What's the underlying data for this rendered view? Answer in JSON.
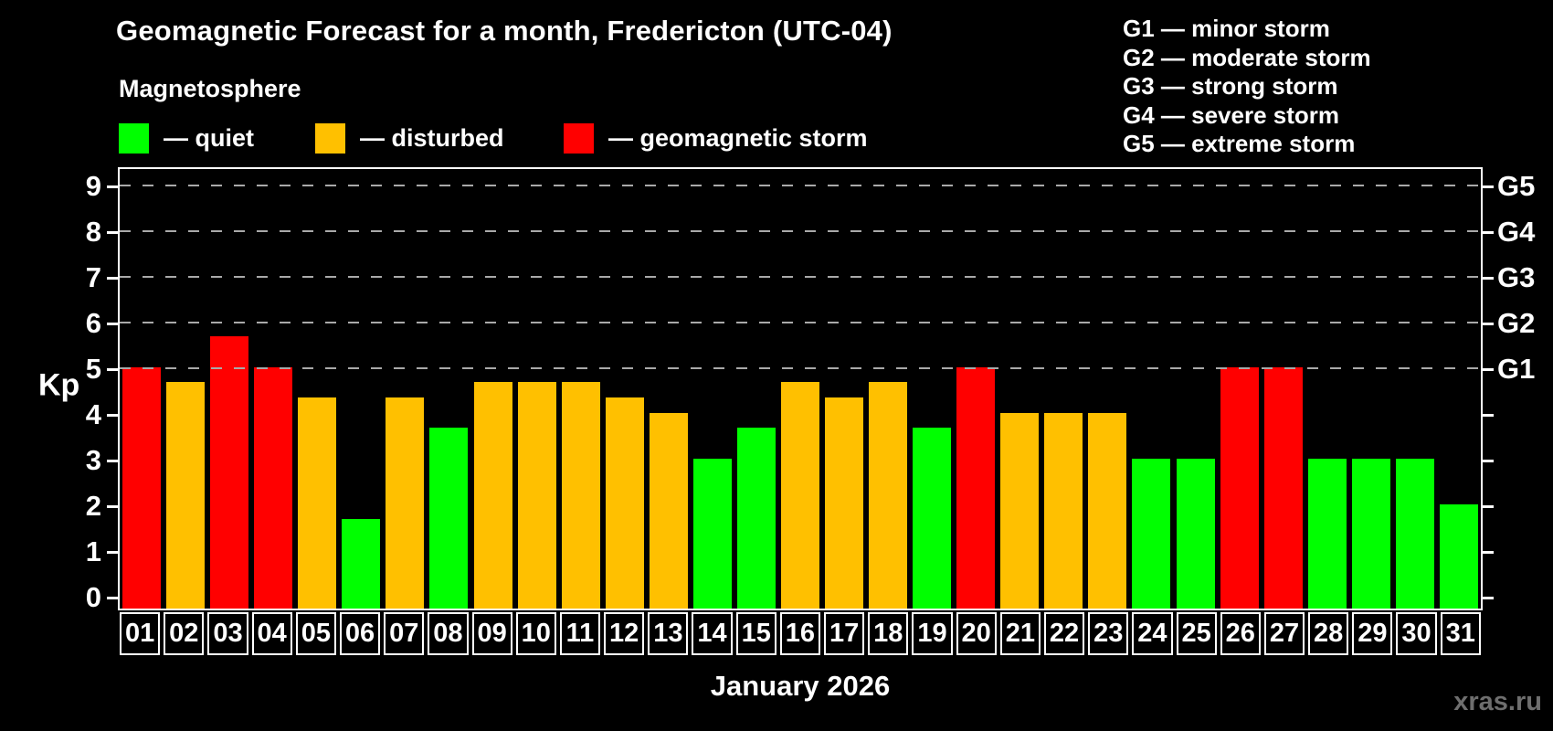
{
  "title": "Geomagnetic Forecast for a month, Fredericton (UTC-04)",
  "subtitle": "Magnetosphere",
  "legend": {
    "items": [
      {
        "name": "quiet",
        "label": "— quiet",
        "color": "#00ff00"
      },
      {
        "name": "disturbed",
        "label": "— disturbed",
        "color": "#ffc000"
      },
      {
        "name": "storm",
        "label": "— geomagnetic storm",
        "color": "#ff0000"
      }
    ]
  },
  "g_legend": [
    "G1 — minor storm",
    "G2 — moderate storm",
    "G3 — strong storm",
    "G4 — severe storm",
    "G5 — extreme storm"
  ],
  "axis": {
    "ylabel": "Kp",
    "xlabel": "January 2026",
    "yticks": [
      0,
      1,
      2,
      3,
      4,
      5,
      6,
      7,
      8,
      9
    ],
    "right_labels": [
      {
        "label": "G1",
        "kp": 5
      },
      {
        "label": "G2",
        "kp": 6
      },
      {
        "label": "G3",
        "kp": 7
      },
      {
        "label": "G4",
        "kp": 8
      },
      {
        "label": "G5",
        "kp": 9
      }
    ]
  },
  "watermark": "xras.ru",
  "chart_data": {
    "type": "bar",
    "title": "Geomagnetic Forecast for a month, Fredericton (UTC-04)",
    "xlabel": "January 2026",
    "ylabel": "Kp",
    "ylim": [
      0,
      9.4
    ],
    "grid": "dashed horizontal lines at Kp 5–9 (G1–G5)",
    "legend_position": "top-left",
    "categories": [
      "01",
      "02",
      "03",
      "04",
      "05",
      "06",
      "07",
      "08",
      "09",
      "10",
      "11",
      "12",
      "13",
      "14",
      "15",
      "16",
      "17",
      "18",
      "19",
      "20",
      "21",
      "22",
      "23",
      "24",
      "25",
      "26",
      "27",
      "28",
      "29",
      "30",
      "31"
    ],
    "values": [
      5.0,
      4.67,
      5.67,
      5.0,
      4.33,
      1.67,
      4.33,
      3.67,
      4.67,
      4.67,
      4.67,
      4.33,
      4.0,
      3.0,
      3.67,
      4.67,
      4.33,
      4.67,
      3.67,
      5.0,
      4.0,
      4.0,
      4.0,
      3.0,
      3.0,
      5.0,
      5.0,
      3.0,
      3.0,
      3.0,
      2.0
    ],
    "states": [
      "storm",
      "disturbed",
      "storm",
      "storm",
      "disturbed",
      "quiet",
      "disturbed",
      "quiet",
      "disturbed",
      "disturbed",
      "disturbed",
      "disturbed",
      "disturbed",
      "quiet",
      "quiet",
      "disturbed",
      "disturbed",
      "disturbed",
      "quiet",
      "storm",
      "disturbed",
      "disturbed",
      "disturbed",
      "quiet",
      "quiet",
      "storm",
      "storm",
      "quiet",
      "quiet",
      "quiet",
      "quiet"
    ],
    "colors": {
      "quiet": "#00ff00",
      "disturbed": "#ffc000",
      "storm": "#ff0000"
    },
    "dashed_gridlines_at": [
      5,
      6,
      7,
      8,
      9
    ]
  }
}
